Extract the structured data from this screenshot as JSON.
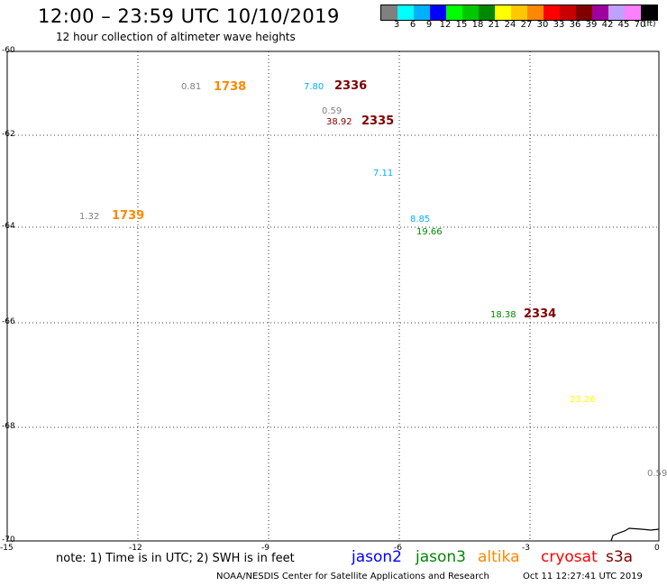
{
  "header": {
    "title": "12:00 – 23:59 UTC 10/10/2019",
    "subtitle": "12 hour collection of altimeter wave heights"
  },
  "colorbar": {
    "colors": [
      "#808080",
      "#00ffff",
      "#00b0ff",
      "#0000ff",
      "#00ff00",
      "#00c800",
      "#008800",
      "#ffff00",
      "#ffc800",
      "#ff8800",
      "#ff0000",
      "#c80000",
      "#800000",
      "#a000a0",
      "#c0a0ff",
      "#ff80ff",
      "#000000"
    ],
    "labels": [
      "3",
      "6",
      "9",
      "12",
      "15",
      "18",
      "21",
      "24",
      "27",
      "30",
      "33",
      "36",
      "39",
      "42",
      "45",
      "70"
    ],
    "unit": "(ft)"
  },
  "axes": {
    "lat_labels": [
      "-60",
      "-62",
      "-64",
      "-66",
      "-68",
      "-70"
    ],
    "lon_labels": [
      "-15",
      "-12",
      "-9",
      "-6",
      "-3",
      "0"
    ]
  },
  "observations": [
    {
      "text": "0.81",
      "color": "#808080"
    },
    {
      "text": "7.80",
      "color": "#00b0ff"
    },
    {
      "text": "0.59",
      "color": "#808080"
    },
    {
      "text": "38.92",
      "color": "#800000"
    },
    {
      "text": "7.11",
      "color": "#00b0ff"
    },
    {
      "text": "1.32",
      "color": "#808080"
    },
    {
      "text": "8.85",
      "color": "#00b0ff"
    },
    {
      "text": "19.66",
      "color": "#008800"
    },
    {
      "text": "18.38",
      "color": "#008800"
    },
    {
      "text": "23.26",
      "color": "#ffff00"
    },
    {
      "text": "0.59",
      "color": "#808080"
    }
  ],
  "passes": [
    {
      "text": "1738",
      "color": "#ff8800"
    },
    {
      "text": "2336",
      "color": "#800000"
    },
    {
      "text": "2335",
      "color": "#800000"
    },
    {
      "text": "1739",
      "color": "#ff8800"
    },
    {
      "text": "2334",
      "color": "#800000"
    }
  ],
  "footer": {
    "note": "note: 1) Time is in UTC; 2) SWH is in feet",
    "satellites": [
      {
        "name": "jason2",
        "color": "#0000ff"
      },
      {
        "name": "jason3",
        "color": "#008800"
      },
      {
        "name": "altika",
        "color": "#ff8800"
      },
      {
        "name": "cryosat",
        "color": "#ff0000"
      },
      {
        "name": "s3a",
        "color": "#800000"
      }
    ],
    "credit": "NOAA/NESDIS Center for Satellite Applications and Research",
    "timestamp": "Oct 11 12:27:41 UTC 2019"
  }
}
